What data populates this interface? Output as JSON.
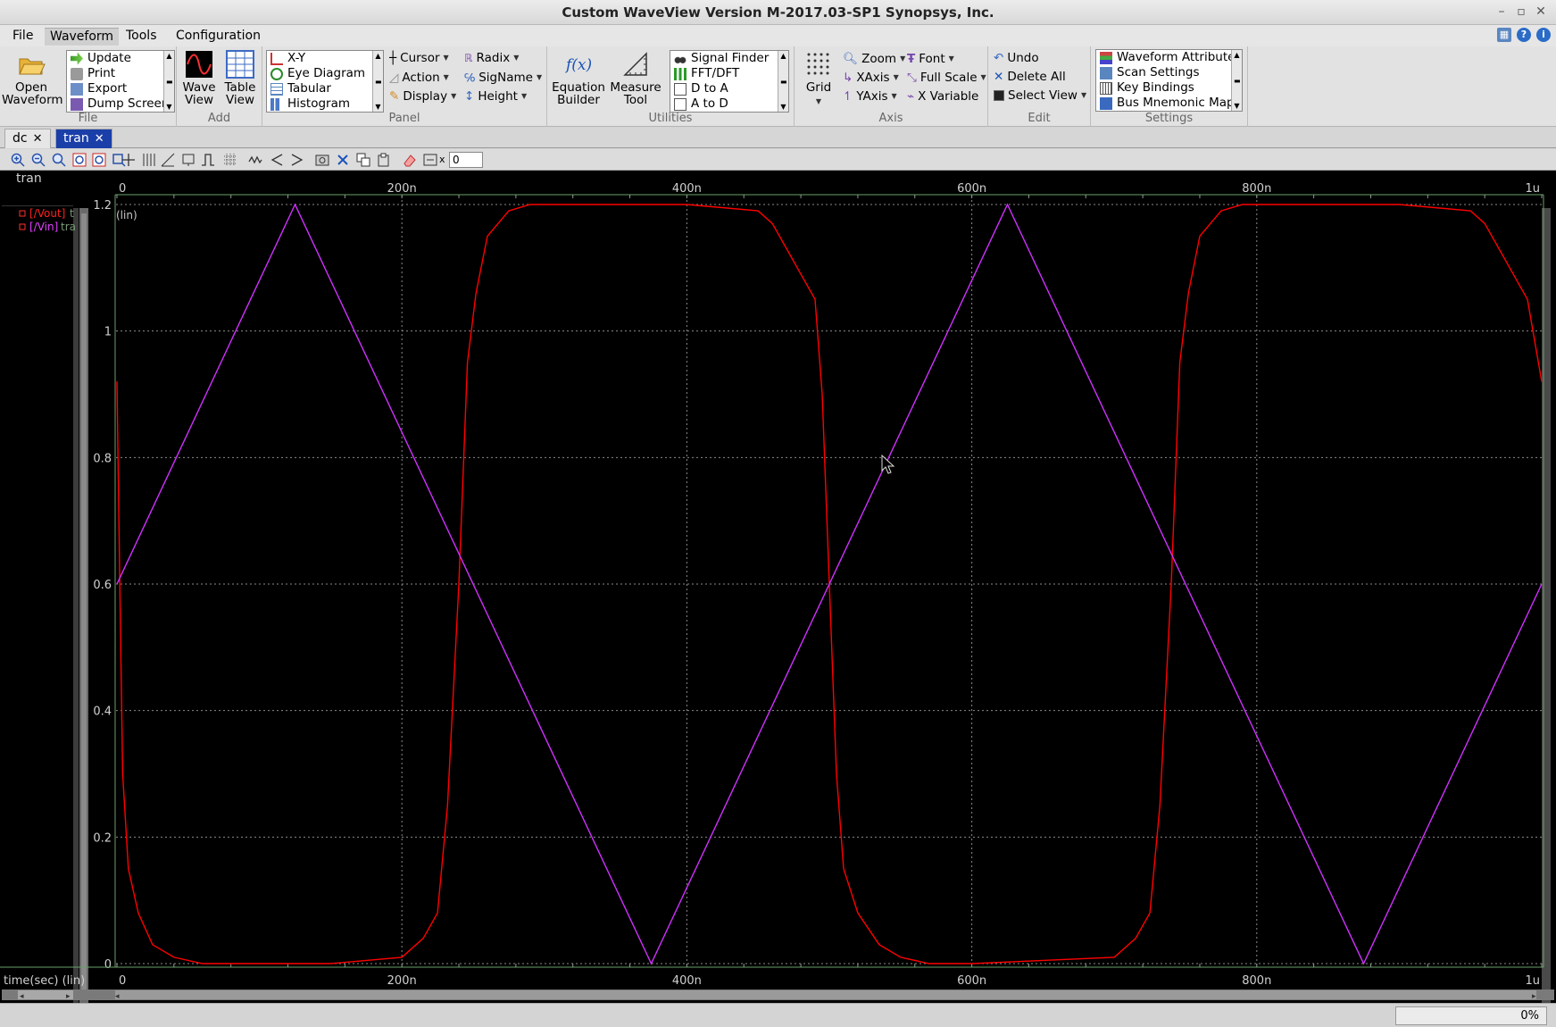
{
  "window": {
    "title": "Custom WaveView Version M-2017.03-SP1 Synopsys, Inc."
  },
  "menu": {
    "items": [
      "File",
      "Waveform",
      "Tools",
      "Configuration"
    ],
    "active": "Waveform"
  },
  "ribbon": {
    "file": {
      "label": "File",
      "open_label_1": "Open",
      "open_label_2": "Waveform",
      "list": [
        "Update",
        "Print",
        "Export",
        "Dump Screen"
      ]
    },
    "add": {
      "label": "Add",
      "wave_1": "Wave",
      "wave_2": "View",
      "table_1": "Table",
      "table_2": "View"
    },
    "panel": {
      "label": "Panel",
      "list": [
        "X-Y",
        "Eye Diagram",
        "Tabular",
        "Histogram"
      ],
      "cursor": "Cursor",
      "action": "Action",
      "display": "Display",
      "radix": "Radix",
      "signame": "SigName",
      "height": "Height"
    },
    "utilities": {
      "label": "Utilities",
      "eq_1": "Equation",
      "eq_2": "Builder",
      "meas_1": "Measure",
      "meas_2": "Tool",
      "list": [
        "Signal Finder",
        "FFT/DFT",
        "D to A",
        "A to D"
      ]
    },
    "axis": {
      "label": "Axis",
      "grid": "Grid",
      "zoom": "Zoom",
      "xaxis": "XAxis",
      "yaxis": "YAxis",
      "font": "Font",
      "fullscale": "Full Scale",
      "xvariable": "X Variable"
    },
    "edit": {
      "label": "Edit",
      "undo": "Undo",
      "delete_all": "Delete All",
      "select_view": "Select View"
    },
    "settings": {
      "label": "Settings",
      "list": [
        "Waveform Attributes",
        "Scan Settings",
        "Key Bindings",
        "Bus Mnemonic Map"
      ]
    }
  },
  "tabs": [
    {
      "label": "dc",
      "active": false
    },
    {
      "label": "tran",
      "active": true
    }
  ],
  "toolbar": {
    "x_value": "0",
    "x_label": "x"
  },
  "panel": {
    "title": "tran",
    "legend": [
      {
        "name": "[/Vout]",
        "suffix": "t",
        "color": "#ff0000"
      },
      {
        "name": "[/Vin]",
        "suffix": "tra",
        "color": "#e040ff"
      }
    ],
    "y_unit_label": "(lin)",
    "x_axis_label": "time(sec) (lin)"
  },
  "chart_data": {
    "type": "line",
    "xlabel": "time(sec) (lin)",
    "ylabel": "",
    "xlim": [
      0,
      1000
    ],
    "ylim": [
      0,
      1.2
    ],
    "x_unit": "ns",
    "x_ticks": [
      0,
      200,
      400,
      600,
      800,
      1000
    ],
    "x_tick_labels": [
      "0",
      "200n",
      "400n",
      "600n",
      "800n",
      "1u"
    ],
    "y_ticks": [
      0,
      0.2,
      0.4,
      0.6,
      0.8,
      1,
      1.2
    ],
    "y_tick_labels": [
      "0",
      "0.2",
      "0.4",
      "0.6",
      "0.8",
      "1",
      "1.2"
    ],
    "grid": true,
    "series": [
      {
        "name": "[/Vout]",
        "color": "#ff0000",
        "x": [
          0,
          2,
          4,
          8,
          15,
          25,
          40,
          60,
          90,
          150,
          200,
          215,
          225,
          232,
          240,
          246,
          252,
          260,
          275,
          290,
          320,
          400,
          450,
          460,
          490,
          495,
          500,
          505,
          510,
          520,
          535,
          550,
          570,
          600,
          700,
          715,
          725,
          732,
          740,
          746,
          752,
          760,
          775,
          790,
          820,
          900,
          950,
          960,
          990,
          1000
        ],
        "y": [
          0.92,
          0.6,
          0.3,
          0.15,
          0.08,
          0.03,
          0.01,
          0.0,
          0.0,
          0.0,
          0.01,
          0.04,
          0.08,
          0.25,
          0.6,
          0.95,
          1.06,
          1.15,
          1.19,
          1.2,
          1.2,
          1.2,
          1.19,
          1.17,
          1.05,
          0.9,
          0.6,
          0.3,
          0.15,
          0.08,
          0.03,
          0.01,
          0.0,
          0.0,
          0.01,
          0.04,
          0.08,
          0.25,
          0.6,
          0.95,
          1.06,
          1.15,
          1.19,
          1.2,
          1.2,
          1.2,
          1.19,
          1.17,
          1.05,
          0.92
        ]
      },
      {
        "name": "[/Vin]",
        "color": "#d030ff",
        "x": [
          0,
          125,
          375,
          625,
          875,
          1000
        ],
        "y": [
          0.6,
          1.2,
          0,
          1.2,
          0,
          0.6
        ]
      }
    ]
  },
  "status": {
    "progress": "0%"
  }
}
